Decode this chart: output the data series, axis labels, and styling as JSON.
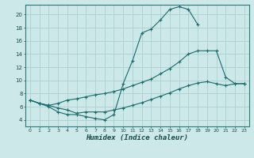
{
  "xlabel": "Humidex (Indice chaleur)",
  "bg_color": "#cce8e8",
  "grid_color": "#aad0d0",
  "line_color": "#1a6b6b",
  "xlim": [
    -0.5,
    23.5
  ],
  "ylim": [
    3.0,
    21.5
  ],
  "xticks": [
    0,
    1,
    2,
    3,
    4,
    5,
    6,
    7,
    8,
    9,
    10,
    11,
    12,
    13,
    14,
    15,
    16,
    17,
    18,
    19,
    20,
    21,
    22,
    23
  ],
  "yticks": [
    4,
    6,
    8,
    10,
    12,
    14,
    16,
    18,
    20
  ],
  "curve1_x": [
    0,
    1,
    2,
    3,
    4,
    5,
    6,
    7,
    8,
    9,
    10,
    11,
    12,
    13,
    14,
    15,
    16,
    17,
    18
  ],
  "curve1_y": [
    7,
    6.5,
    6,
    5.2,
    4.8,
    4.8,
    4.5,
    4.2,
    4.0,
    4.8,
    9.5,
    13.0,
    17.2,
    17.8,
    19.2,
    20.8,
    21.2,
    20.8,
    18.5
  ],
  "curve2_x": [
    0,
    1,
    2,
    3,
    4,
    5,
    6,
    7,
    8,
    9,
    10,
    11,
    12,
    13,
    14,
    15,
    16,
    17,
    18,
    19,
    20,
    21,
    22,
    23
  ],
  "curve2_y": [
    7,
    6.5,
    6.2,
    6.5,
    7.0,
    7.2,
    7.5,
    7.8,
    8.0,
    8.3,
    8.7,
    9.2,
    9.7,
    10.2,
    11.0,
    11.8,
    12.8,
    14.0,
    14.5,
    14.5,
    14.5,
    10.5,
    9.5,
    9.5
  ],
  "curve3_x": [
    0,
    1,
    2,
    3,
    4,
    5,
    6,
    7,
    8,
    9,
    10,
    11,
    12,
    13,
    14,
    15,
    16,
    17,
    18,
    19,
    20,
    21,
    22,
    23
  ],
  "curve3_y": [
    7,
    6.5,
    6.2,
    5.8,
    5.5,
    5.0,
    5.2,
    5.2,
    5.2,
    5.5,
    5.8,
    6.2,
    6.6,
    7.1,
    7.6,
    8.1,
    8.7,
    9.2,
    9.6,
    9.8,
    9.5,
    9.2,
    9.5,
    9.5
  ]
}
